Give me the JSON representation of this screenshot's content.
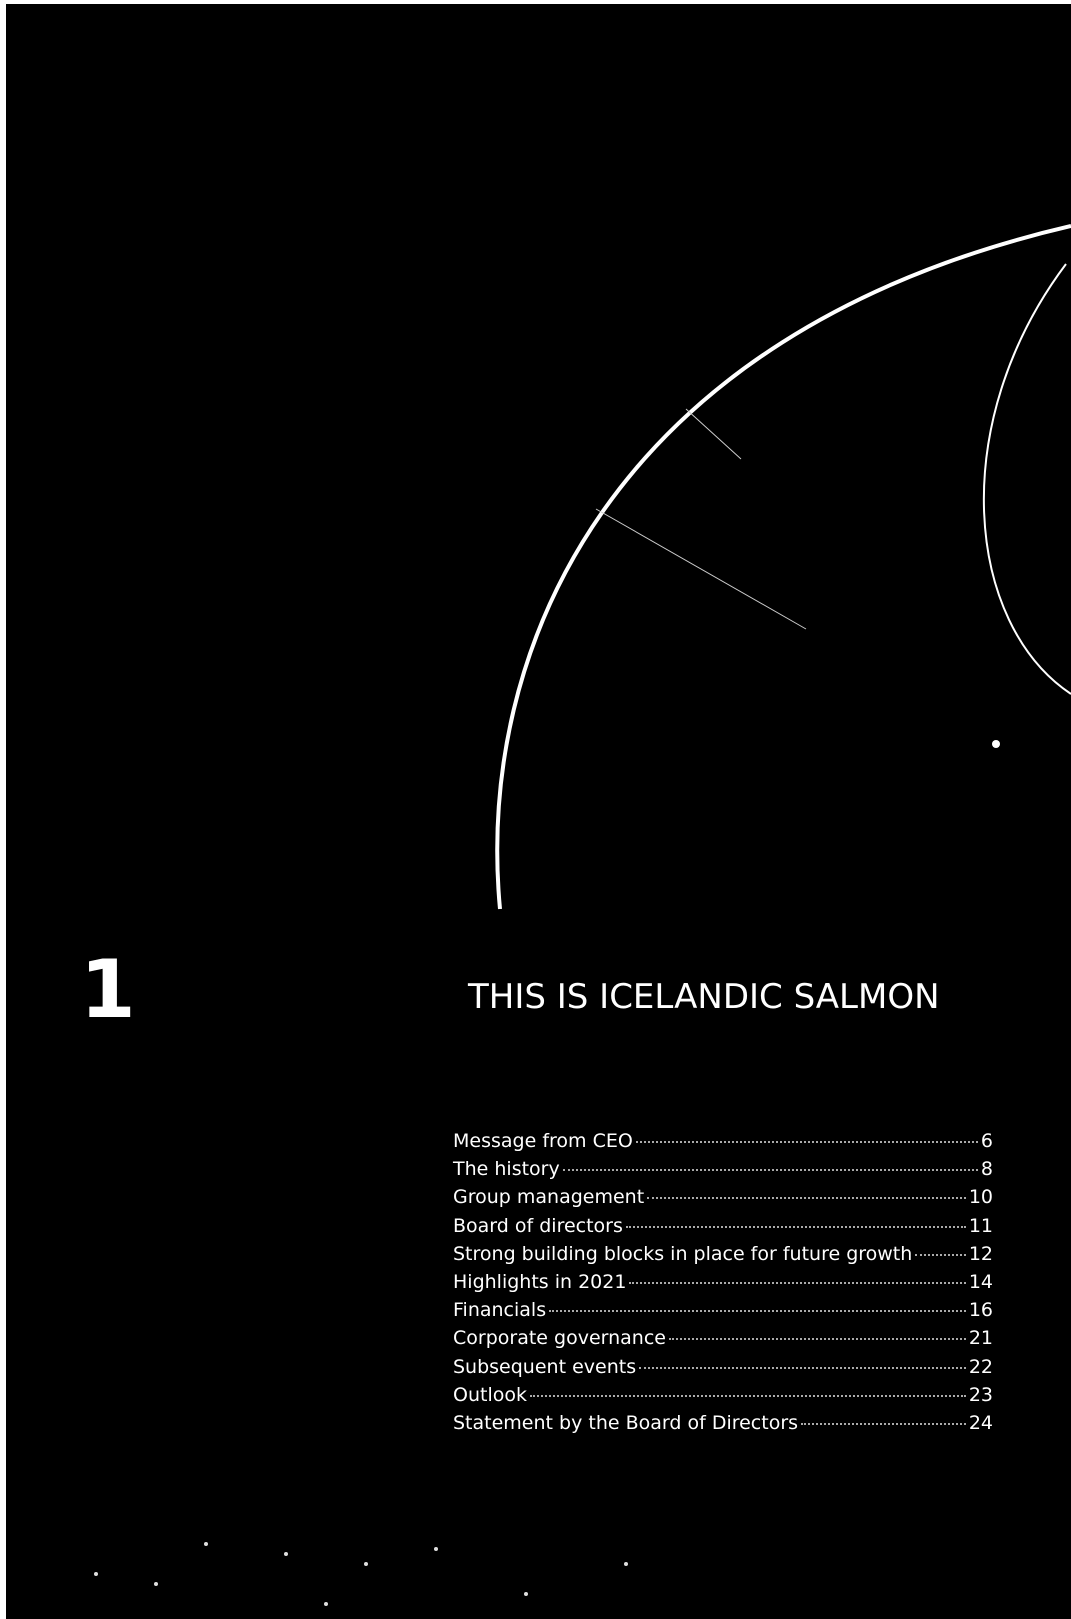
{
  "section": {
    "number": "1",
    "title": "THIS IS ICELANDIC SALMON"
  },
  "toc": [
    {
      "label": "Message from CEO",
      "page": "6"
    },
    {
      "label": "The history",
      "page": "8"
    },
    {
      "label": "Group management",
      "page": "10"
    },
    {
      "label": "Board of directors",
      "page": "11"
    },
    {
      "label": "Strong building blocks in place for future growth",
      "page": "12"
    },
    {
      "label": "Highlights in 2021",
      "page": "14"
    },
    {
      "label": "Financials",
      "page": "16"
    },
    {
      "label": "Corporate governance",
      "page": "21"
    },
    {
      "label": "Subsequent events",
      "page": "22"
    },
    {
      "label": "Outlook",
      "page": "23"
    },
    {
      "label": "Statement by the Board of Directors",
      "page": "24"
    }
  ]
}
